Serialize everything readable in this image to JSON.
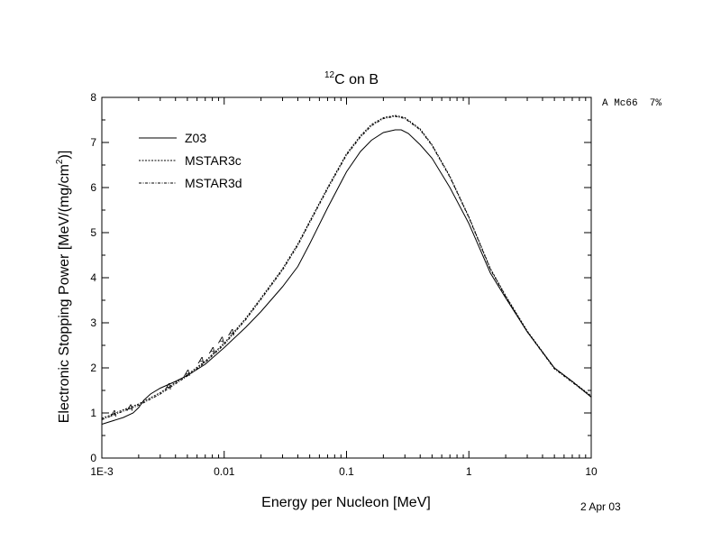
{
  "chart_data": {
    "type": "line",
    "title": {
      "sup": "12",
      "text": "C on B"
    },
    "xlabel": "Energy per Nucleon [MeV]",
    "ylabel": {
      "pre": "Electronic Stopping Power [MeV/(mg/cm",
      "sup": "2",
      "post": ")]"
    },
    "x_scale": "log",
    "xlim": [
      0.001,
      10
    ],
    "ylim": [
      0,
      8
    ],
    "x_ticks": [
      {
        "value": 0.001,
        "label": "1E-3"
      },
      {
        "value": 0.01,
        "label": "0.01"
      },
      {
        "value": 0.1,
        "label": "0.1"
      },
      {
        "value": 1,
        "label": "1"
      },
      {
        "value": 10,
        "label": "10"
      }
    ],
    "y_ticks": [
      0,
      1,
      2,
      3,
      4,
      5,
      6,
      7,
      8
    ],
    "grid": false,
    "legend_position": "top-left",
    "annotation_right": "A Mc66  7%",
    "date_label": "2 Apr 03",
    "series": [
      {
        "name": "Z03",
        "style": "solid",
        "x": [
          0.001,
          0.0015,
          0.0018,
          0.002,
          0.0022,
          0.0025,
          0.003,
          0.004,
          0.005,
          0.007,
          0.01,
          0.015,
          0.02,
          0.03,
          0.04,
          0.05,
          0.07,
          0.1,
          0.13,
          0.16,
          0.2,
          0.25,
          0.28,
          0.32,
          0.4,
          0.5,
          0.7,
          1,
          1.5,
          2,
          3,
          5,
          7,
          10
        ],
        "y": [
          0.75,
          0.9,
          1.0,
          1.12,
          1.28,
          1.42,
          1.55,
          1.7,
          1.83,
          2.08,
          2.45,
          2.9,
          3.25,
          3.8,
          4.25,
          4.75,
          5.55,
          6.35,
          6.8,
          7.05,
          7.22,
          7.28,
          7.28,
          7.2,
          6.95,
          6.65,
          6.0,
          5.2,
          4.1,
          3.55,
          2.8,
          2.0,
          1.7,
          1.35
        ]
      },
      {
        "name": "MSTAR3c",
        "style": "dash",
        "x": [
          0.001,
          0.0015,
          0.002,
          0.003,
          0.005,
          0.007,
          0.01,
          0.015,
          0.02,
          0.03,
          0.04,
          0.05,
          0.07,
          0.1,
          0.13,
          0.16,
          0.2,
          0.25,
          0.3,
          0.4,
          0.5,
          0.7,
          1,
          1.5,
          2,
          3,
          5,
          7,
          10
        ],
        "y": [
          0.88,
          1.07,
          1.2,
          1.45,
          1.85,
          2.15,
          2.55,
          3.1,
          3.55,
          4.2,
          4.75,
          5.25,
          6.0,
          6.75,
          7.15,
          7.4,
          7.55,
          7.6,
          7.55,
          7.3,
          6.95,
          6.25,
          5.35,
          4.2,
          3.6,
          2.82,
          2.0,
          1.7,
          1.38
        ]
      },
      {
        "name": "MSTAR3d",
        "style": "dashdot",
        "x": [
          0.001,
          0.0015,
          0.002,
          0.003,
          0.005,
          0.007,
          0.01,
          0.015,
          0.02,
          0.03,
          0.04,
          0.05,
          0.07,
          0.1,
          0.13,
          0.16,
          0.2,
          0.25,
          0.3,
          0.4,
          0.5,
          0.7,
          1,
          1.5,
          2,
          3,
          5,
          7,
          10
        ],
        "y": [
          0.85,
          1.04,
          1.17,
          1.42,
          1.82,
          2.12,
          2.52,
          3.07,
          3.52,
          4.17,
          4.72,
          5.22,
          5.97,
          6.72,
          7.12,
          7.37,
          7.53,
          7.58,
          7.53,
          7.28,
          6.93,
          6.23,
          5.33,
          4.18,
          3.58,
          2.8,
          1.98,
          1.68,
          1.36
        ]
      }
    ],
    "data_points": {
      "marker": "A",
      "x": [
        0.00125,
        0.0017,
        0.0035,
        0.005,
        0.0065,
        0.008,
        0.0095,
        0.0115
      ],
      "y": [
        1.0,
        1.13,
        1.6,
        1.9,
        2.18,
        2.4,
        2.63,
        2.8
      ]
    }
  }
}
